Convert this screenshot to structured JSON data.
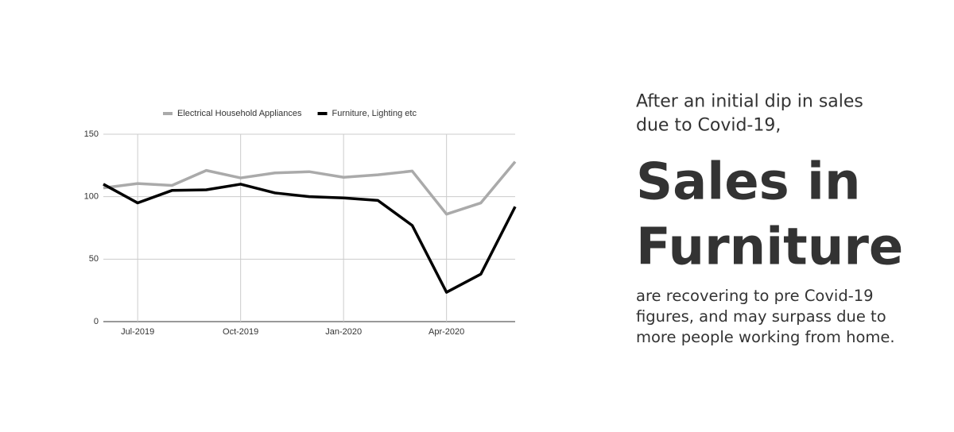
{
  "chart_data": {
    "type": "line",
    "categories": [
      null,
      "Jul-2019",
      null,
      null,
      "Oct-2019",
      null,
      null,
      "Jan-2020",
      null,
      null,
      "Apr-2020",
      null,
      null
    ],
    "series": [
      {
        "name": "Electrical Household Appliances",
        "color": "#aaaaaa",
        "values": [
          107,
          110.5,
          109,
          121,
          115,
          119,
          120,
          115.5,
          117.5,
          120.5,
          86,
          95,
          128
        ]
      },
      {
        "name": "Furniture, Lighting etc",
        "color": "#000000",
        "values": [
          110,
          95,
          105,
          105.5,
          110,
          103,
          100,
          99,
          97,
          77,
          23.5,
          38,
          92
        ]
      }
    ],
    "ylim": [
      0,
      150
    ],
    "yticks": [
      0,
      50,
      100,
      150
    ],
    "grid": true,
    "legend": "top"
  },
  "text": {
    "intro": [
      "After an initial dip in sales",
      "due to Covid-19,"
    ],
    "headline": [
      "Sales in",
      "Furniture"
    ],
    "body": [
      "are recovering to pre Covid-19",
      "figures, and may surpass due to",
      "more people working from home."
    ]
  }
}
